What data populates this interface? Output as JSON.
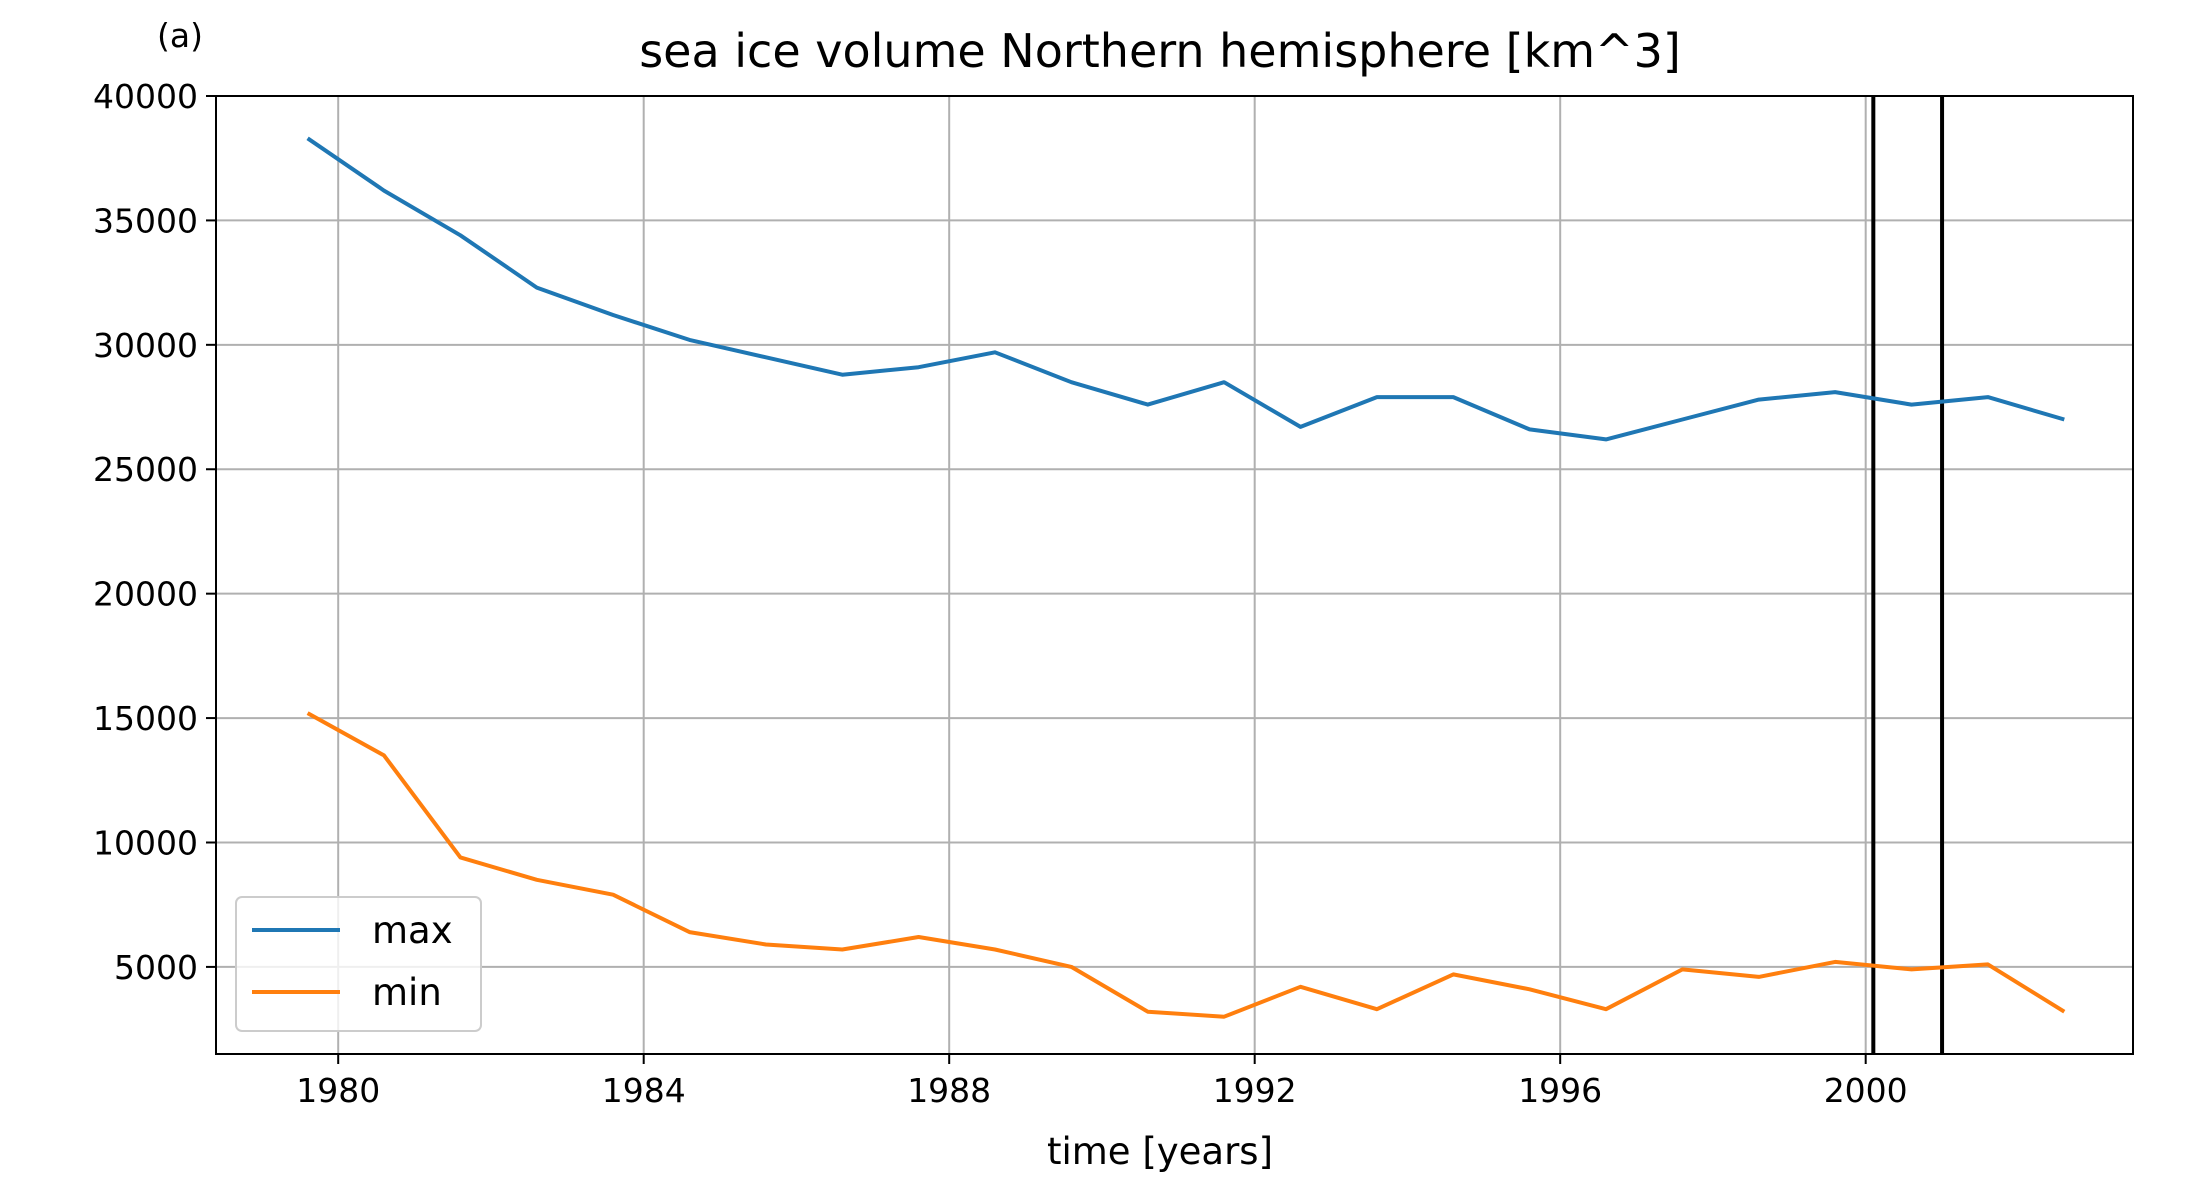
{
  "panel_label": "(a)",
  "chart_data": {
    "type": "line",
    "title": "sea ice volume Northern hemisphere [km^3]",
    "xlabel": "time [years]",
    "ylabel": "",
    "xlim": [
      1978.4,
      2003.5
    ],
    "ylim": [
      1500,
      40000
    ],
    "xticks": [
      1980,
      1984,
      1988,
      1992,
      1996,
      2000
    ],
    "xtick_labels": [
      "1980",
      "1984",
      "1988",
      "1992",
      "1996",
      "2000"
    ],
    "yticks": [
      5000,
      10000,
      15000,
      20000,
      25000,
      30000,
      35000,
      40000
    ],
    "ytick_labels": [
      "5000",
      "10000",
      "15000",
      "20000",
      "25000",
      "30000",
      "35000",
      "40000"
    ],
    "grid": true,
    "legend": "lower-left",
    "series": [
      {
        "name": "max",
        "color": "#1f77b4",
        "x": [
          1979.6,
          1980.6,
          1981.6,
          1982.6,
          1983.6,
          1984.6,
          1985.6,
          1986.6,
          1987.6,
          1988.6,
          1989.6,
          1990.6,
          1991.6,
          1992.6,
          1993.6,
          1994.6,
          1995.6,
          1996.6,
          1997.6,
          1998.6,
          1999.6,
          2000.6,
          2001.6,
          2002.6
        ],
        "values": [
          38300,
          36200,
          34400,
          32300,
          31200,
          30200,
          29500,
          28800,
          29100,
          29700,
          28500,
          27600,
          28500,
          26700,
          27900,
          27900,
          26600,
          26200,
          27000,
          27800,
          28100,
          27600,
          27900,
          27000
        ]
      },
      {
        "name": "min",
        "color": "#ff7f0e",
        "x": [
          1979.6,
          1980.6,
          1981.6,
          1982.6,
          1983.6,
          1984.6,
          1985.6,
          1986.6,
          1987.6,
          1988.6,
          1989.6,
          1990.6,
          1991.6,
          1992.6,
          1993.6,
          1994.6,
          1995.6,
          1996.6,
          1997.6,
          1998.6,
          1999.6,
          2000.6,
          2001.6,
          2002.6
        ],
        "values": [
          15200,
          13500,
          9400,
          8500,
          7900,
          6400,
          5900,
          5700,
          6200,
          5700,
          5000,
          3200,
          3000,
          4200,
          3300,
          4700,
          4100,
          3300,
          4900,
          4600,
          5200,
          4900,
          5100,
          3200
        ]
      }
    ],
    "vlines": [
      {
        "x": 2000.1,
        "color": "#000000"
      },
      {
        "x": 2001.0,
        "color": "#000000"
      }
    ]
  }
}
